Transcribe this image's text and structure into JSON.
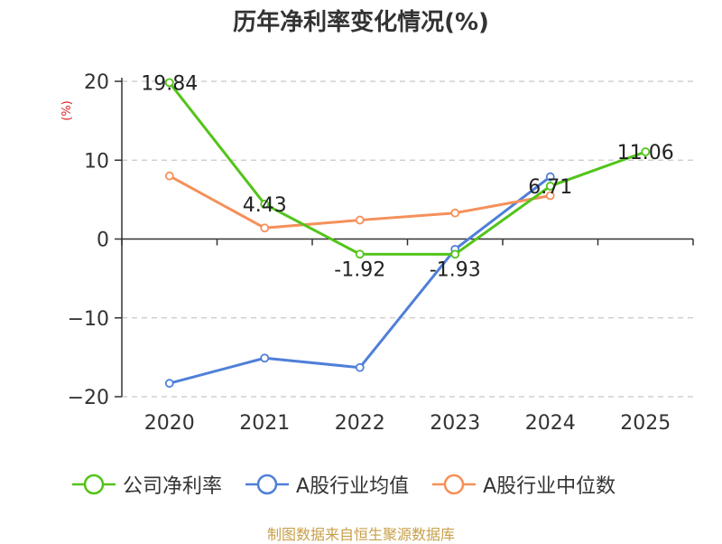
{
  "chart_data": {
    "type": "line",
    "title": "历年净利率变化情况(%)",
    "ylabel": "(%)",
    "categories": [
      "2020",
      "2021",
      "2022",
      "2023",
      "2024",
      "2025"
    ],
    "ylim": [
      -20,
      20
    ],
    "yticks": [
      20,
      10,
      0,
      -10,
      -20
    ],
    "ytick_labels": [
      "20",
      "10",
      "0",
      "−10",
      "−20"
    ],
    "grid": true,
    "legend_position": "bottom",
    "series": [
      {
        "name": "公司净利率",
        "color": "#52c41a",
        "values": [
          19.84,
          4.43,
          -1.92,
          -1.93,
          6.71,
          11.06
        ],
        "labels": [
          "19.84",
          "4.43",
          "-1.92",
          "-1.93",
          "6.71",
          "11.06"
        ]
      },
      {
        "name": "A股行业均值",
        "color": "#4f7fd8",
        "values": [
          -18.3,
          -15.1,
          -16.3,
          -1.3,
          7.9,
          null
        ]
      },
      {
        "name": "A股行业中位数",
        "color": "#f5905a",
        "values": [
          8.0,
          1.4,
          2.4,
          3.3,
          5.5,
          null
        ]
      }
    ]
  },
  "footer": "制图数据来自恒生聚源数据库"
}
